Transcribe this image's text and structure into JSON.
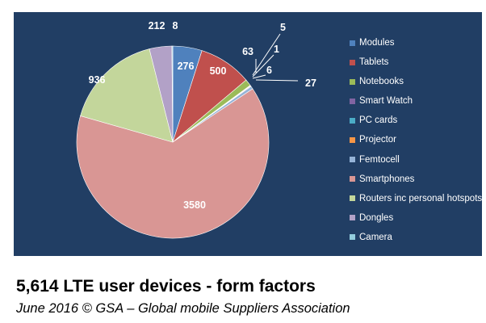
{
  "chart_data": {
    "type": "pie",
    "title": "",
    "legend_position": "right",
    "slices": [
      {
        "label": "Modules",
        "value": 276,
        "color": "#4f81bd"
      },
      {
        "label": "Tablets",
        "value": 500,
        "color": "#c0504d"
      },
      {
        "label": "Notebooks",
        "value": 63,
        "color": "#9bbb59"
      },
      {
        "label": "Smart Watch",
        "value": 5,
        "color": "#8064a2"
      },
      {
        "label": "PC cards",
        "value": 1,
        "color": "#4bacc6"
      },
      {
        "label": "Projector",
        "value": 6,
        "color": "#f79646"
      },
      {
        "label": "Femtocell",
        "value": 27,
        "color": "#95b3d7"
      },
      {
        "label": "Smartphones",
        "value": 3580,
        "color": "#d99694"
      },
      {
        "label": "Routers inc personal hotspots",
        "value": 936,
        "color": "#c3d69b"
      },
      {
        "label": "Dongles",
        "value": 212,
        "color": "#b2a1c7"
      },
      {
        "label": "Camera",
        "value": 8,
        "color": "#93cddd"
      }
    ],
    "data_labels": [
      "276",
      "500",
      "63",
      "5",
      "1",
      "6",
      "27",
      "3580",
      "936",
      "212",
      "8"
    ]
  },
  "caption": {
    "title": "5,614 LTE user devices - form factors",
    "subtitle": "June 2016  © GSA – Global mobile Suppliers Association"
  },
  "colors": {
    "panel_background": "#213e64",
    "label_text": "#ffffff"
  }
}
